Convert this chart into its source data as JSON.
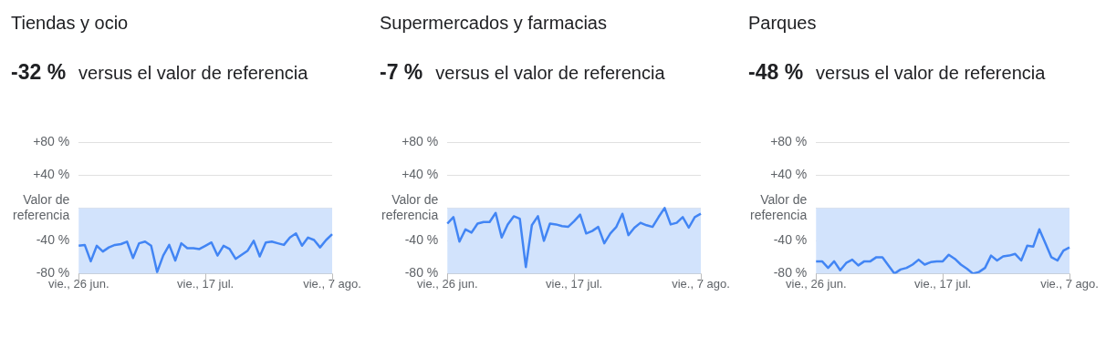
{
  "chart_data": [
    {
      "type": "line",
      "title": "Tiendas y ocio",
      "subtitle": "-32 % versus el valor de referencia",
      "categories": [
        "vie., 26 jun.",
        null,
        null,
        null,
        null,
        null,
        null,
        null,
        null,
        null,
        null,
        null,
        null,
        null,
        null,
        null,
        null,
        null,
        null,
        null,
        null,
        "vie., 17 jul.",
        null,
        null,
        null,
        null,
        null,
        null,
        null,
        null,
        null,
        null,
        null,
        null,
        null,
        null,
        null,
        null,
        null,
        null,
        null,
        null,
        "vie., 7 ago."
      ],
      "series": [
        {
          "color": "#4285f4",
          "values": [
            -46,
            -45,
            -65,
            -46,
            -53,
            -48,
            -45,
            -44,
            -41,
            -61,
            -43,
            -41,
            -46,
            -78,
            -58,
            -45,
            -64,
            -43,
            -49,
            -49,
            -50,
            -46,
            -42,
            -58,
            -46,
            -50,
            -62,
            -57,
            -52,
            -40,
            -59,
            -42,
            -41,
            -43,
            -45,
            -36,
            -31,
            -46,
            -36,
            -39,
            -48,
            -39,
            -32
          ]
        }
      ],
      "ylim": [
        -80,
        80
      ],
      "yticks": [
        {
          "value": -80,
          "label": "-80 %"
        },
        {
          "value": -40,
          "label": "-40 %"
        },
        {
          "value": 0,
          "label": "Valor de referencia"
        },
        {
          "value": 40,
          "label": "+40 %"
        },
        {
          "value": 80,
          "label": "+80 %"
        }
      ],
      "grid": "y",
      "bands": [
        {
          "axis": "y",
          "from": -80,
          "to": 0,
          "color": "#d2e3fc"
        }
      ]
    },
    {
      "type": "line",
      "title": "Supermercados y farmacias",
      "subtitle": "-7 % versus el valor de referencia",
      "categories": [
        "vie., 26 jun.",
        null,
        null,
        null,
        null,
        null,
        null,
        null,
        null,
        null,
        null,
        null,
        null,
        null,
        null,
        null,
        null,
        null,
        null,
        null,
        null,
        "vie., 17 jul.",
        null,
        null,
        null,
        null,
        null,
        null,
        null,
        null,
        null,
        null,
        null,
        null,
        null,
        null,
        null,
        null,
        null,
        null,
        null,
        null,
        "vie., 7 ago."
      ],
      "series": [
        {
          "color": "#4285f4",
          "values": [
            -19,
            -11,
            -41,
            -26,
            -30,
            -19,
            -17,
            -17,
            -6,
            -36,
            -20,
            -10,
            -13,
            -72,
            -21,
            -10,
            -40,
            -19,
            -20,
            -22,
            -23,
            -16,
            -8,
            -31,
            -28,
            -23,
            -43,
            -31,
            -23,
            -7,
            -33,
            -24,
            -18,
            -21,
            -23,
            -11,
            0,
            -20,
            -18,
            -11,
            -24,
            -11,
            -7
          ]
        }
      ],
      "ylim": [
        -80,
        80
      ],
      "yticks": [
        {
          "value": -80,
          "label": "-80 %"
        },
        {
          "value": -40,
          "label": "-40 %"
        },
        {
          "value": 0,
          "label": "Valor de referencia"
        },
        {
          "value": 40,
          "label": "+40 %"
        },
        {
          "value": 80,
          "label": "+80 %"
        }
      ],
      "grid": "y",
      "bands": [
        {
          "axis": "y",
          "from": -80,
          "to": 0,
          "color": "#d2e3fc"
        }
      ]
    },
    {
      "type": "line",
      "title": "Parques",
      "subtitle": "-48 % versus el valor de referencia",
      "categories": [
        "vie., 26 jun.",
        null,
        null,
        null,
        null,
        null,
        null,
        null,
        null,
        null,
        null,
        null,
        null,
        null,
        null,
        null,
        null,
        null,
        null,
        null,
        null,
        "vie., 17 jul.",
        null,
        null,
        null,
        null,
        null,
        null,
        null,
        null,
        null,
        null,
        null,
        null,
        null,
        null,
        null,
        null,
        null,
        null,
        null,
        null,
        "vie., 7 ago."
      ],
      "series": [
        {
          "color": "#4285f4",
          "values": [
            -65,
            -65,
            -73,
            -65,
            -76,
            -67,
            -63,
            -70,
            -65,
            -65,
            -60,
            -60,
            -70,
            -80,
            -75,
            -73,
            -69,
            -63,
            -69,
            -66,
            -65,
            -65,
            -57,
            -62,
            -69,
            -74,
            -80,
            -78,
            -73,
            -58,
            -64,
            -59,
            -58,
            -56,
            -64,
            -46,
            -47,
            -26,
            -43,
            -60,
            -64,
            -52,
            -48
          ]
        }
      ],
      "ylim": [
        -80,
        80
      ],
      "yticks": [
        {
          "value": -80,
          "label": "-80 %"
        },
        {
          "value": -40,
          "label": "-40 %"
        },
        {
          "value": 0,
          "label": "Valor de referencia"
        },
        {
          "value": 40,
          "label": "+40 %"
        },
        {
          "value": 80,
          "label": "+80 %"
        }
      ],
      "grid": "y",
      "bands": [
        {
          "axis": "y",
          "from": -80,
          "to": 0,
          "color": "#d2e3fc"
        }
      ]
    }
  ]
}
